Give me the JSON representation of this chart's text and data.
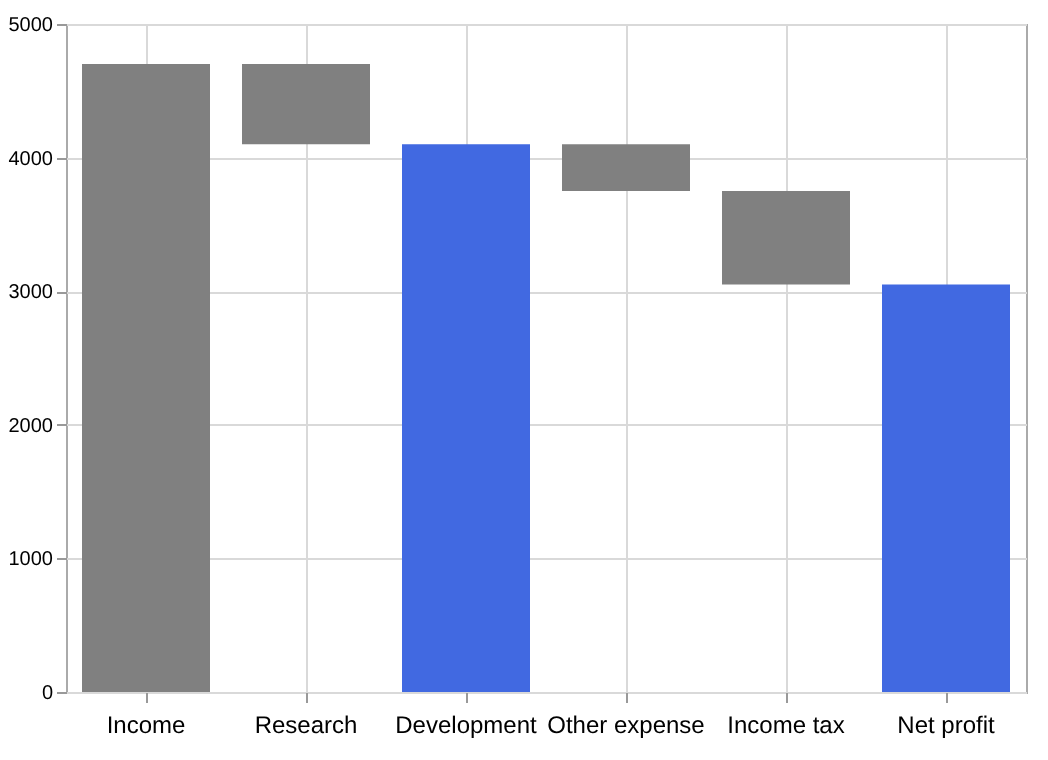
{
  "chart_data": {
    "type": "bar",
    "categories": [
      "Income",
      "Research",
      "Development",
      "Other expense",
      "Income tax",
      "Net profit"
    ],
    "values": [
      4700,
      -600,
      4100,
      -350,
      -700,
      3050
    ],
    "base": [
      0,
      4700,
      0,
      4100,
      3750,
      0
    ],
    "colors": [
      "#808080",
      "#808080",
      "#4169e1",
      "#808080",
      "#808080",
      "#4169e1"
    ],
    "ylim": [
      0,
      5000
    ],
    "yticks": [
      0,
      1000,
      2000,
      3000,
      4000,
      5000
    ],
    "grid": true
  }
}
